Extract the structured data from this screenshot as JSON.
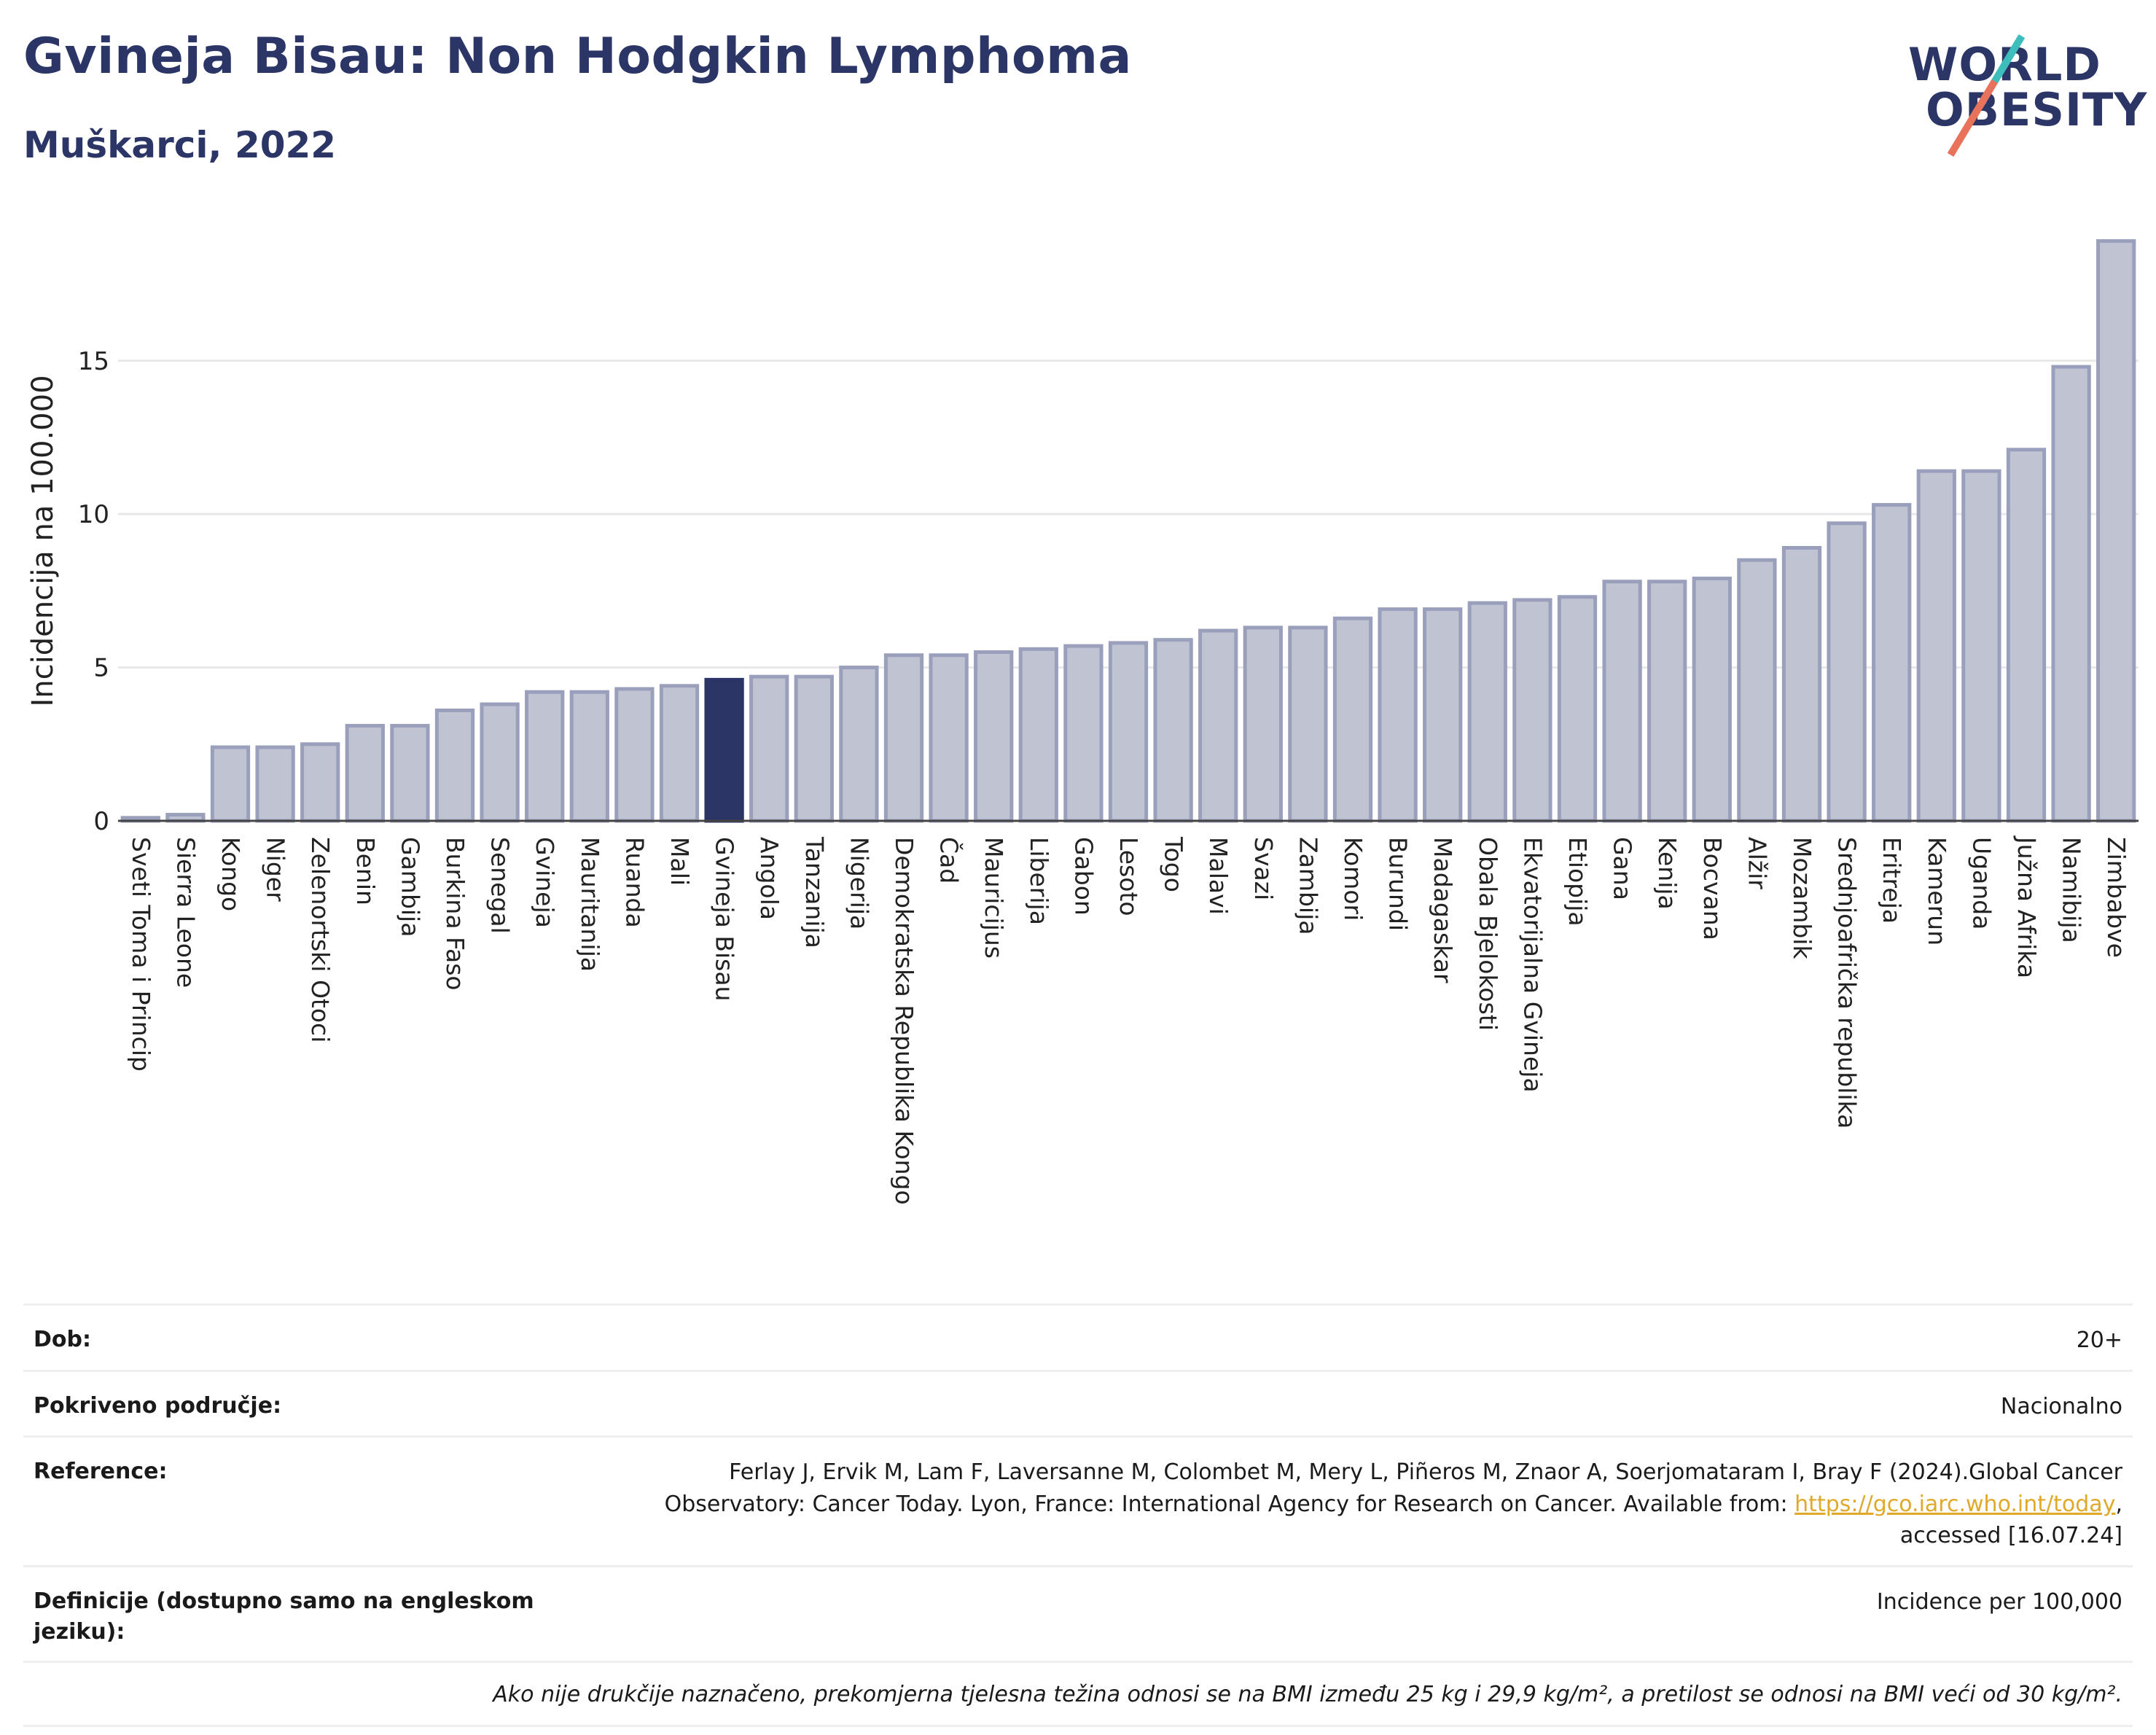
{
  "header": {
    "title": "Gvineja Bisau: Non Hodgkin Lymphoma",
    "subtitle": "Muškarci, 2022"
  },
  "logo": {
    "line1": "WORLD",
    "line2": "OBESITY"
  },
  "colors": {
    "bar": "#c0c4d2",
    "bar_border": "#9aa0bb",
    "highlight": "#2b3566",
    "gridline": "#e8e8e8"
  },
  "chart_data": {
    "type": "bar",
    "ylabel": "Incidencija na 100.000",
    "xlabel": "",
    "ylim": [
      0,
      19.2
    ],
    "yticks": [
      0,
      5,
      10,
      15
    ],
    "grid": true,
    "highlight": "Gvineja Bisau",
    "categories": [
      "Sveti Toma i Princip",
      "Sierra Leone",
      "Kongo",
      "Niger",
      "Zelenortski Otoci",
      "Benin",
      "Gambija",
      "Burkina Faso",
      "Senegal",
      "Gvineja",
      "Mauritanija",
      "Ruanda",
      "Mali",
      "Gvineja Bisau",
      "Angola",
      "Tanzanija",
      "Nigerija",
      "Demokratska Republika Kongo",
      "Čad",
      "Mauricijus",
      "Liberija",
      "Gabon",
      "Lesoto",
      "Togo",
      "Malavi",
      "Svazi",
      "Zambija",
      "Komori",
      "Burundi",
      "Madagaskar",
      "Obala Bjelokosti",
      "Ekvatorijalna Gvineja",
      "Etiopija",
      "Gana",
      "Kenija",
      "Bocvana",
      "Alžir",
      "Mozambik",
      "Srednjoafrička republika",
      "Eritreja",
      "Kamerun",
      "Uganda",
      "Južna Afrika",
      "Namibija",
      "Zimbabve"
    ],
    "values": [
      0.1,
      0.2,
      2.4,
      2.4,
      2.5,
      3.1,
      3.1,
      3.6,
      3.8,
      4.2,
      4.2,
      4.3,
      4.4,
      4.6,
      4.7,
      4.7,
      5.0,
      5.4,
      5.4,
      5.5,
      5.6,
      5.7,
      5.8,
      5.9,
      6.2,
      6.3,
      6.3,
      6.6,
      6.9,
      6.9,
      7.1,
      7.2,
      7.3,
      7.8,
      7.8,
      7.9,
      8.5,
      8.9,
      9.7,
      10.3,
      11.4,
      11.4,
      12.1,
      14.8,
      18.9
    ]
  },
  "info": {
    "rows": [
      {
        "key": "Dob:",
        "value": "20+"
      },
      {
        "key": "Pokriveno područje:",
        "value": "Nacionalno"
      },
      {
        "key": "Reference:",
        "value_before": "Ferlay J, Ervik M, Lam F, Laversanne M, Colombet M, Mery L, Piñeros M, Znaor A, Soerjomataram I, Bray F (2024).Global Cancer Observatory: Cancer Today. Lyon, France: International Agency for Research on Cancer. Available from: ",
        "link": "https://gco.iarc.who.int/today",
        "value_after": ", accessed [16.07.24]"
      },
      {
        "key": "Definicije (dostupno samo na engleskom jeziku):",
        "value": "Incidence per 100,000"
      }
    ],
    "note": "Ako nije drukčije naznačeno, prekomjerna tjelesna težina odnosi se na BMI između 25 kg i 29,9 kg/m², a pretilost se odnosi na BMI veći od 30 kg/m²."
  }
}
